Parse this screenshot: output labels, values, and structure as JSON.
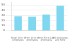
{
  "chart_data": {
    "type": "bar",
    "categories": [
      "Fewer 10 or 9\nemployees",
      "From 10 to 49\nemployees",
      "From 50 to 249\nemployees",
      "250 employees\nand more"
    ],
    "values": [
      28,
      27,
      31,
      48
    ],
    "color": "#7fd7f0",
    "ylim": [
      0,
      55
    ],
    "yticks": [
      0,
      10,
      20,
      30,
      40,
      50
    ],
    "grid": true
  }
}
